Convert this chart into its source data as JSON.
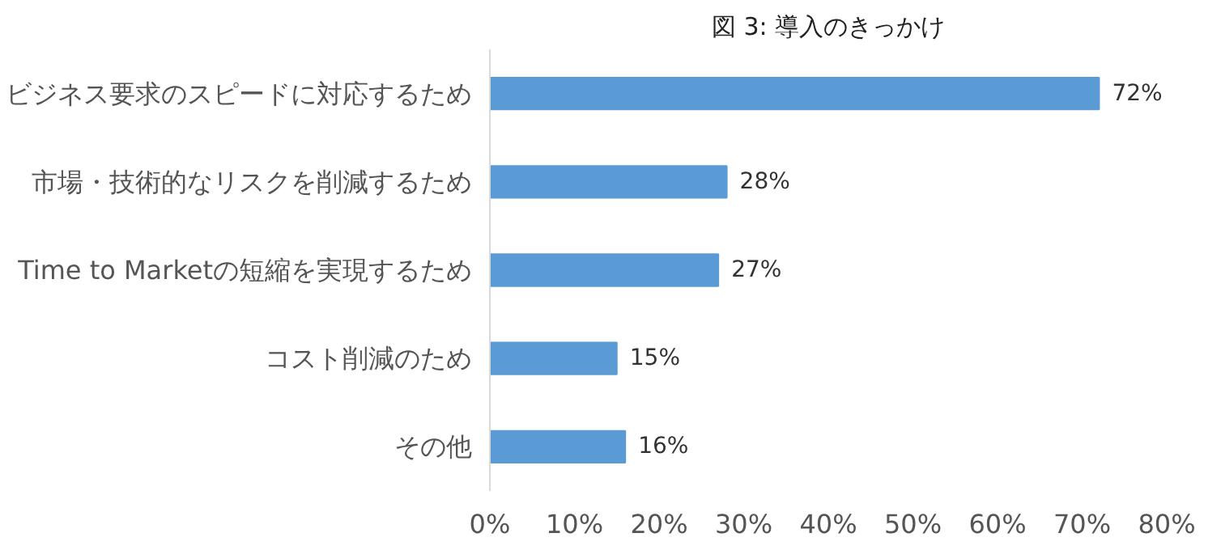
{
  "chart_data": {
    "type": "bar",
    "orientation": "horizontal",
    "title": "図 3: 導入のきっかけ",
    "categories": [
      "ビジネス要求のスピードに対応するため",
      "市場・技術的なリスクを削減するため",
      "Time to Marketの短縮を実現するため",
      "コスト削減のため",
      "その他"
    ],
    "values": [
      72,
      28,
      27,
      15,
      16
    ],
    "value_labels": [
      "72%",
      "28%",
      "27%",
      "15%",
      "16%"
    ],
    "color": "#5b9bd5",
    "xlim": [
      0,
      80
    ],
    "xticks": [
      {
        "value": 0,
        "label": "0%"
      },
      {
        "value": 10,
        "label": "10%"
      },
      {
        "value": 20,
        "label": "20%"
      },
      {
        "value": 30,
        "label": "30%"
      },
      {
        "value": 40,
        "label": "40%"
      },
      {
        "value": 50,
        "label": "50%"
      },
      {
        "value": 60,
        "label": "60%"
      },
      {
        "value": 70,
        "label": "70%"
      },
      {
        "value": 80,
        "label": "80%"
      }
    ],
    "grid": false
  }
}
